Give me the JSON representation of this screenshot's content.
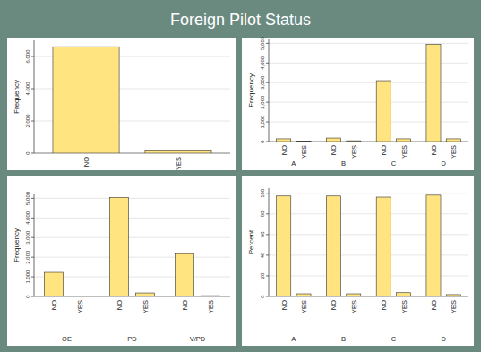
{
  "title": "Foreign Pilot Status",
  "chart_data": [
    {
      "type": "bar",
      "categories": [
        "NO",
        "YES"
      ],
      "values": [
        6600,
        150
      ],
      "color": "#ffe480",
      "y_label": "Frequency",
      "ylim": [
        0,
        7000
      ],
      "yticks": [
        0,
        {
          "value": 2000,
          "label": "2,000"
        },
        {
          "value": 4000,
          "label": "4,000"
        },
        {
          "value": 6000,
          "label": "6,000"
        }
      ],
      "grid": true
    },
    {
      "type": "bar",
      "groups": [
        "A",
        "B",
        "C",
        "D"
      ],
      "categories": [
        "NO",
        "YES"
      ],
      "values": [
        [
          140,
          30
        ],
        [
          180,
          40
        ],
        [
          3100,
          140
        ],
        [
          4950,
          140
        ]
      ],
      "color": "#ffe480",
      "y_label": "Frequency",
      "ylim": [
        0,
        5200
      ],
      "yticks": [
        0,
        {
          "value": 1000,
          "label": "1,000"
        },
        {
          "value": 2000,
          "label": "2,000"
        },
        {
          "value": 3000,
          "label": "3,000"
        },
        {
          "value": 4000,
          "label": "4,000"
        },
        {
          "value": 5000,
          "label": "5,000"
        }
      ],
      "grid": true
    },
    {
      "type": "bar",
      "groups": [
        "OE",
        "PD",
        "V/PD"
      ],
      "categories": [
        "NO",
        "YES"
      ],
      "values": [
        [
          1230,
          20
        ],
        [
          5050,
          180
        ],
        [
          2180,
          40
        ]
      ],
      "color": "#ffe480",
      "y_label": "Frequency",
      "ylim": [
        0,
        5200
      ],
      "yticks": [
        0,
        {
          "value": 1000,
          "label": "1,000"
        },
        {
          "value": 2000,
          "label": "2,000"
        },
        {
          "value": 3000,
          "label": "3,000"
        },
        {
          "value": 4000,
          "label": "4,000"
        },
        {
          "value": 5000,
          "label": "5,000"
        }
      ],
      "grid": true
    },
    {
      "type": "bar",
      "groups": [
        "A",
        "B",
        "C",
        "D"
      ],
      "categories": [
        "NO",
        "YES"
      ],
      "values": [
        [
          97.4,
          2.6
        ],
        [
          97.4,
          2.6
        ],
        [
          96.3,
          3.7
        ],
        [
          98.2,
          1.8
        ]
      ],
      "color": "#ffe480",
      "y_label": "Percent",
      "ylim": [
        0,
        105
      ],
      "yticks": [
        0,
        20,
        40,
        60,
        80,
        100
      ],
      "grid": true
    }
  ]
}
